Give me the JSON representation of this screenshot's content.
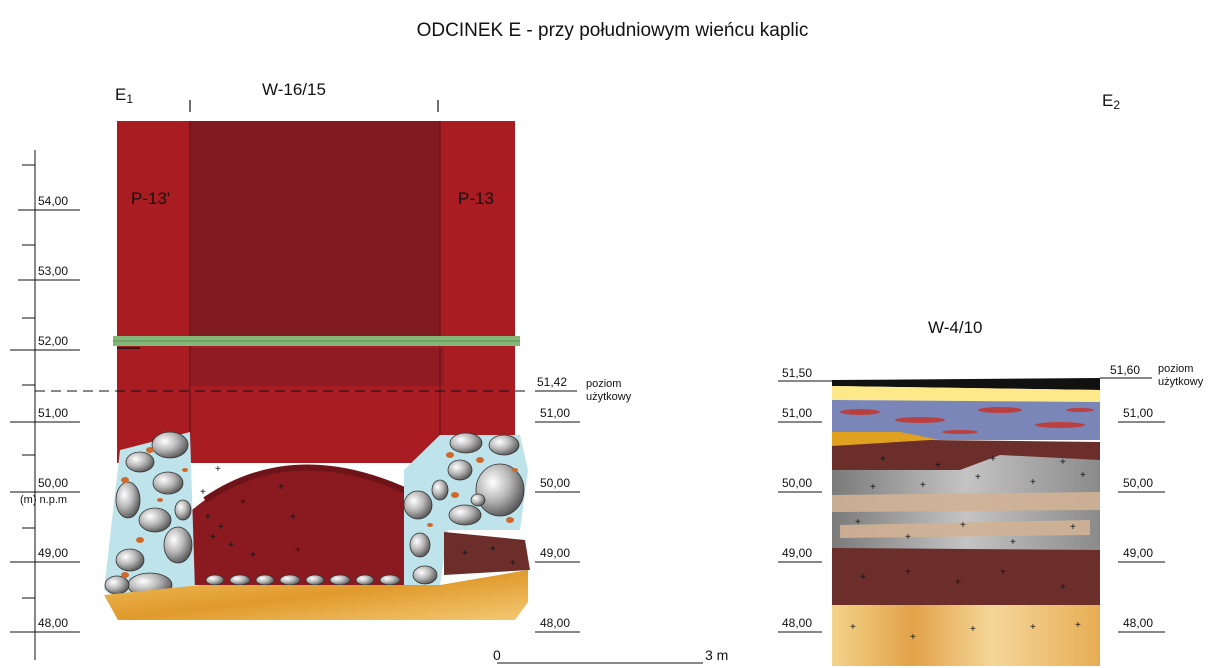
{
  "title": "ODCINEK E - przy południowym wieńcu kaplic",
  "section_left": {
    "label": "E",
    "sub": "1",
    "wall": "W-16/15",
    "pillar_left": "P-13'",
    "pillar_right": "P-13"
  },
  "section_right": {
    "label": "E",
    "sub": "2",
    "wall": "W-4/10"
  },
  "left_scale": [
    "54,00",
    "53,00",
    "52,00",
    "51,00",
    "50,00",
    "49,00",
    "48,00"
  ],
  "datum_label": "(m) n.p.m",
  "mid_scale": [
    "51,00",
    "50,00",
    "49,00",
    "48,00"
  ],
  "left_usage_level": {
    "value": "51,42",
    "text1": "poziom",
    "text2": "użytkowy"
  },
  "right_left_scale": [
    "51,50",
    "51,00",
    "50,00",
    "49,00",
    "48,00"
  ],
  "right_right_scale": [
    "51,00",
    "50,00",
    "49,00",
    "48,00"
  ],
  "right_usage_level": {
    "value": "51,60",
    "text1": "poziom",
    "text2": "użytkowy"
  },
  "scalebar": {
    "start": "0",
    "end": "3 m"
  },
  "colors": {
    "brick": "#a81c22",
    "brick_dark": "#801b22",
    "mortar_green": "#86b77a",
    "sand": "#e8b050",
    "clay": "#6b2e2a",
    "grey": "#9a9a9a",
    "stone_fill": "#bfe3ea"
  }
}
